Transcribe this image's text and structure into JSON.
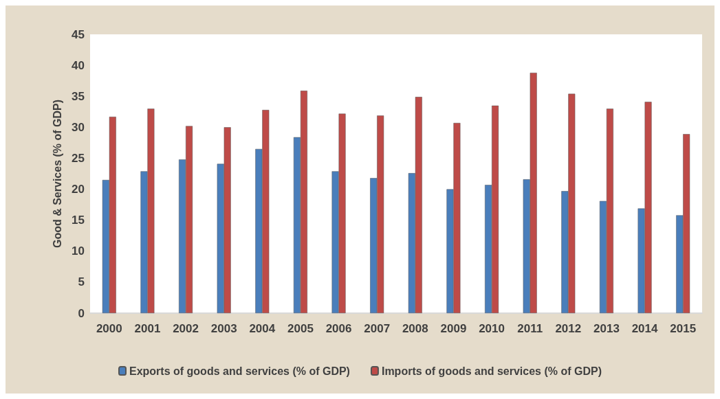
{
  "chart_data": {
    "type": "bar",
    "ylabel": "Good & Services (% of GDP)",
    "categories": [
      "2000",
      "2001",
      "2002",
      "2003",
      "2004",
      "2005",
      "2006",
      "2007",
      "2008",
      "2009",
      "2010",
      "2011",
      "2012",
      "2013",
      "2014",
      "2015"
    ],
    "series": [
      {
        "name": "Exports of goods and services (% of GDP)",
        "color": "#4a7ebb",
        "values": [
          21.5,
          22.9,
          24.8,
          24.1,
          26.5,
          28.4,
          22.9,
          21.8,
          22.6,
          20.0,
          20.7,
          21.6,
          19.7,
          18.1,
          16.9,
          15.8
        ]
      },
      {
        "name": "Imports of goods and services (% of GDP)",
        "color": "#be4b48",
        "values": [
          31.7,
          33.0,
          30.2,
          30.0,
          32.8,
          35.9,
          32.2,
          31.9,
          34.9,
          30.7,
          33.5,
          38.8,
          35.4,
          33.0,
          34.1,
          28.9
        ]
      }
    ],
    "ylim": [
      0,
      45
    ],
    "yticks": [
      0,
      5,
      10,
      15,
      20,
      25,
      30,
      35,
      40,
      45
    ],
    "grid": false,
    "legend": "bottom"
  }
}
